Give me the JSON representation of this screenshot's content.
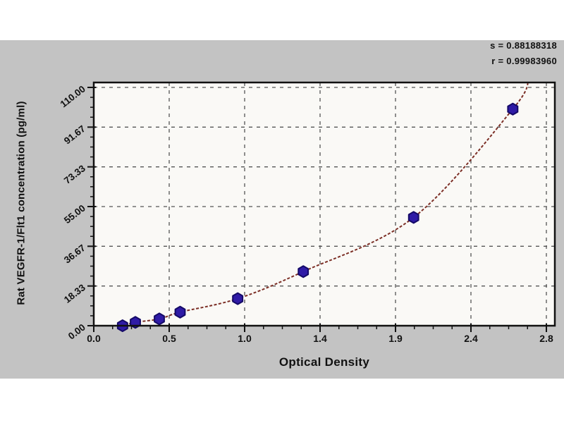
{
  "figure": {
    "page_background": "#ffffff",
    "panel_background": "#c3c3c3"
  },
  "stats": {
    "s_label": "s = 0.88188318",
    "r_label": "r = 0.99983960"
  },
  "chart_data": {
    "type": "scatter",
    "title": "",
    "xlabel": "Optical Density",
    "ylabel": "Rat VEGFR-1/Flt1 concentration (pg/ml)",
    "xlim": [
      0,
      2.83
    ],
    "ylim": [
      0,
      110
    ],
    "x_tick_labels": [
      "0.0",
      "0.5",
      "1.0",
      "1.4",
      "1.9",
      "2.4",
      "2.8"
    ],
    "y_tick_labels": [
      "0.00",
      "18.33",
      "36.67",
      "55.00",
      "73.33",
      "91.67",
      "110.00"
    ],
    "grid": "dashed",
    "legend_position": "none",
    "series": [
      {
        "name": "standard-points",
        "type": "scatter",
        "marker": "hexagon",
        "marker_color": "#2f1ba6",
        "marker_edge_color": "#140a66",
        "points": [
          [
            0.18,
            0.0
          ],
          [
            0.26,
            1.56
          ],
          [
            0.41,
            3.12
          ],
          [
            0.54,
            6.25
          ],
          [
            0.9,
            12.5
          ],
          [
            1.31,
            25.0
          ],
          [
            2.0,
            50.0
          ],
          [
            2.62,
            100.0
          ]
        ]
      },
      {
        "name": "fit-curve",
        "type": "line",
        "style": "dashed",
        "color": "#7c2f26",
        "curve_start": [
          0.14,
          -1.0
        ],
        "curve_end": [
          2.72,
          114.0
        ]
      }
    ],
    "frame_color": "#111111",
    "plot_background": "#faf9f6",
    "grid_color": "#555555"
  }
}
